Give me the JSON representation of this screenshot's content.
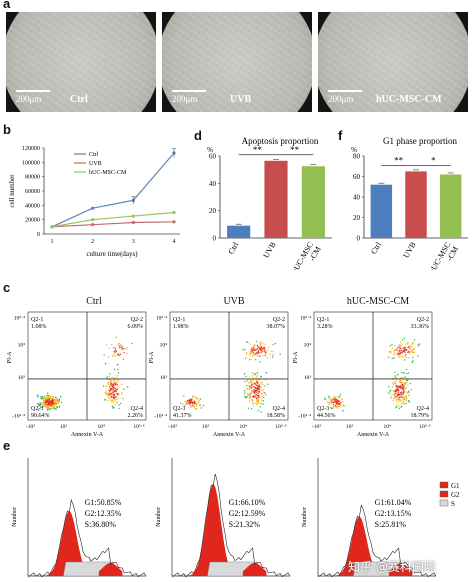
{
  "panel_letters": {
    "a": "a",
    "b": "b",
    "c": "c",
    "d": "d",
    "e": "e",
    "f": "f"
  },
  "micrographs": [
    {
      "scale": "200μm",
      "label": "Ctrl"
    },
    {
      "scale": "200μm",
      "label": "UVB"
    },
    {
      "scale": "200μm",
      "label": "hUC-MSC-CM"
    }
  ],
  "chart_data": [
    {
      "type": "line",
      "xlabel": "culture time(days)",
      "ylabel": "cell number",
      "x": [
        1,
        2,
        3,
        4
      ],
      "ylim": [
        0,
        120000
      ],
      "yticks": [
        "0",
        "20000",
        "40000",
        "60000",
        "80000",
        "100000",
        "120000"
      ],
      "series": [
        {
          "name": "Ctrl",
          "color": "#5d86b9",
          "values": [
            10000,
            36000,
            47000,
            113000
          ]
        },
        {
          "name": "UVB",
          "color": "#c46a6a",
          "values": [
            10000,
            13000,
            16000,
            17000
          ]
        },
        {
          "name": "hUC-MSC-CM",
          "color": "#9cc05a",
          "values": [
            10000,
            20000,
            25000,
            30000
          ]
        }
      ]
    },
    {
      "type": "bar",
      "title": "Apoptosis proportion",
      "ylabel": "%",
      "categories": [
        "Ctrl",
        "UVB",
        "hUC-MSC\n-CM"
      ],
      "values": [
        9,
        56.5,
        52.5
      ],
      "colors": [
        "#4d7fbf",
        "#c64d4b",
        "#93bf52"
      ],
      "ylim": [
        0,
        60
      ],
      "yticks": [
        "0",
        "20",
        "40",
        "60"
      ],
      "significance": [
        "**",
        "**"
      ]
    },
    {
      "type": "bar",
      "title": "G1 phase proportion",
      "ylabel": "%",
      "categories": [
        "Ctrl",
        "UVB",
        "hUC-MSC\n-CM"
      ],
      "values": [
        52,
        65,
        62
      ],
      "colors": [
        "#4d7fbf",
        "#c64d4b",
        "#93bf52"
      ],
      "ylim": [
        0,
        80
      ],
      "yticks": [
        "0",
        "20",
        "40",
        "60",
        "80"
      ],
      "significance": [
        "**",
        "*"
      ]
    }
  ],
  "flow": {
    "xlabel": "Annexin V-A",
    "ylabel": "PI-A",
    "plots": [
      {
        "title": "Ctrl",
        "q1": "Q2-1",
        "q1v": "1.08%",
        "q2": "Q2-2",
        "q2v": "6.09%",
        "q3": "Q2-3",
        "q3v": "90.64%",
        "q4": "Q2-4",
        "q4v": "2.26%"
      },
      {
        "title": "UVB",
        "q1": "Q2-1",
        "q1v": "1.98%",
        "q2": "Q2-2",
        "q2v": "38.07%",
        "q3": "Q2-3",
        "q3v": "41.37%",
        "q4": "Q2-4",
        "q4v": "18.58%"
      },
      {
        "title": "hUC-MSC-CM",
        "q1": "Q2-1",
        "q1v": "3.28%",
        "q2": "Q2-2",
        "q2v": "33.36%",
        "q3": "Q2-3",
        "q3v": "44.56%",
        "q4": "Q2-4",
        "q4v": "18.79%"
      }
    ]
  },
  "cellcycle": {
    "ylabel": "Number",
    "legend": [
      "G1",
      "G2",
      "S"
    ],
    "plots": [
      {
        "g1": "G1:50.85%",
        "g2": "G2:12.35%",
        "s": "S:36.80%"
      },
      {
        "g1": "G1:66.10%",
        "g2": "G2:12.59%",
        "s": "S:21.32%"
      },
      {
        "g1": "G1:61.04%",
        "g2": "G2:13.15%",
        "s": "S:25.81%"
      }
    ]
  },
  "watermark": "知乎 @赛科国际"
}
